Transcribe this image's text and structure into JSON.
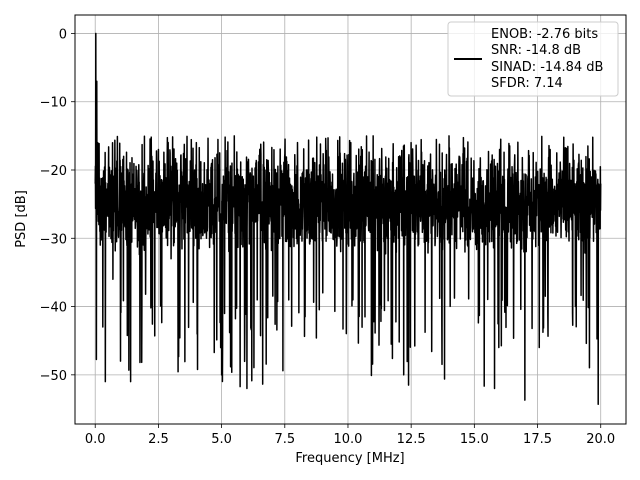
{
  "chart_data": {
    "type": "line",
    "title": "",
    "xlabel": "Frequency [MHz]",
    "ylabel": "PSD [dB]",
    "xlim": [
      -0.8,
      21.0
    ],
    "ylim": [
      -57.2,
      2.7
    ],
    "xticks": [
      0.0,
      2.5,
      5.0,
      7.5,
      10.0,
      12.5,
      15.0,
      17.5,
      20.0
    ],
    "xtick_labels": [
      "0.0",
      "2.5",
      "5.0",
      "7.5",
      "10.0",
      "12.5",
      "15.0",
      "17.5",
      "20.0"
    ],
    "yticks": [
      0,
      -10,
      -20,
      -30,
      -40,
      -50
    ],
    "ytick_labels": [
      "0",
      "−10",
      "−20",
      "−30",
      "−40",
      "−50"
    ],
    "grid": true,
    "legend_position": "top-right",
    "series": [
      {
        "name": "",
        "color": "#000000",
        "description_points": {
          "x": [
            0.0,
            0.02,
            0.04,
            0.06,
            0.08,
            0.1,
            0.15,
            0.2,
            0.3,
            0.4,
            0.5,
            0.7,
            1.0,
            1.3,
            1.4,
            2.0,
            2.5,
            3.0,
            4.0,
            4.4,
            5.0,
            5.5,
            6.0,
            7.0,
            8.0,
            9.0,
            10.0,
            11.0,
            12.0,
            12.4,
            12.5,
            13.0,
            14.0,
            15.0,
            15.8,
            16.0,
            17.0,
            17.5,
            18.0,
            19.0,
            19.9,
            20.0
          ],
          "y": [
            -22.0,
            0.0,
            -14.0,
            -7.0,
            -18.0,
            -16.0,
            -28.0,
            -31.0,
            -43.0,
            -51.0,
            -22.0,
            -36.0,
            -48.0,
            -20.0,
            -51.0,
            -30.0,
            -17.0,
            -33.0,
            -16.0,
            -30.0,
            -50.0,
            -15.0,
            -52.0,
            -25.0,
            -16.0,
            -38.0,
            -21.0,
            -15.0,
            -30.0,
            -51.5,
            -16.0,
            -24.0,
            -15.0,
            -28.0,
            -52.0,
            -17.0,
            -53.7,
            -22.0,
            -17.0,
            -40.0,
            -54.3,
            -22.0
          ]
        },
        "band": {
          "floor_mean": -25.0,
          "upper_envelope": -15.0,
          "lower_envelope": -38.0,
          "max_spike_low": -54.3
        }
      }
    ]
  },
  "legend": {
    "line1": "ENOB: -2.76 bits",
    "line2": "SNR: -14.8 dB",
    "line3": "SINAD: -14.84 dB",
    "line4": "SFDR: 7.14"
  }
}
